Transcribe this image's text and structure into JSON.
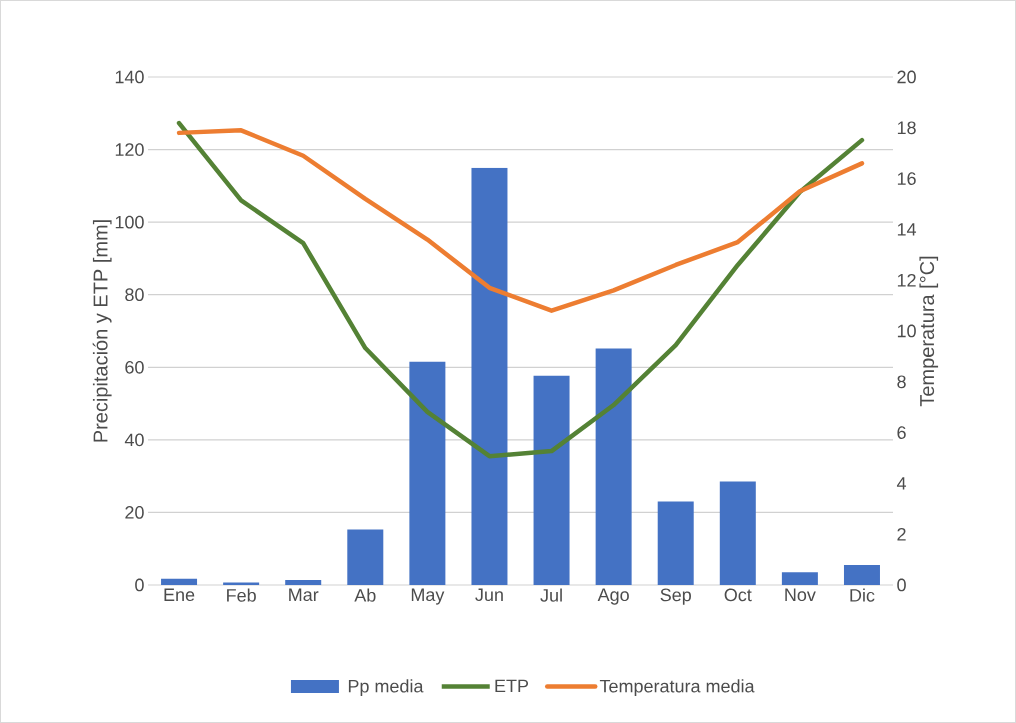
{
  "chart_data": {
    "type": "bar",
    "categories": [
      "Ene",
      "Feb",
      "Mar",
      "Ab",
      "May",
      "Jun",
      "Jul",
      "Ago",
      "Sep",
      "Oct",
      "Nov",
      "Dic"
    ],
    "ylabel": "Precipitación y ETP [mm]",
    "y2label": "Temperatura [°C]",
    "ylim": [
      0,
      140
    ],
    "yticks": [
      0,
      20,
      40,
      60,
      80,
      100,
      120,
      140
    ],
    "y2lim": [
      0,
      20
    ],
    "y2ticks": [
      0,
      2,
      4,
      6,
      8,
      10,
      12,
      14,
      16,
      18,
      20
    ],
    "grid": "y",
    "legend": "bottom",
    "series": [
      {
        "name": "Pp media",
        "color": "#4472c4",
        "values": [
          1.7,
          0.7,
          1.4,
          15.3,
          61.5,
          115,
          57.7,
          65.2,
          23,
          28.5,
          3.5,
          5.5
        ]
      },
      {
        "name": "ETP",
        "type": "line",
        "color": "#548235",
        "values": [
          127.3,
          106,
          94.2,
          65.3,
          47.7,
          35.5,
          36.9,
          49.6,
          66.1,
          88.2,
          108.3,
          122.6
        ]
      },
      {
        "name": "Temperatura media",
        "type": "line",
        "axis": "y2",
        "color": "#ed7d31",
        "values": [
          17.8,
          17.9,
          16.9,
          15.2,
          13.6,
          11.7,
          10.8,
          11.6,
          12.6,
          13.5,
          15.5,
          16.6
        ]
      }
    ]
  }
}
